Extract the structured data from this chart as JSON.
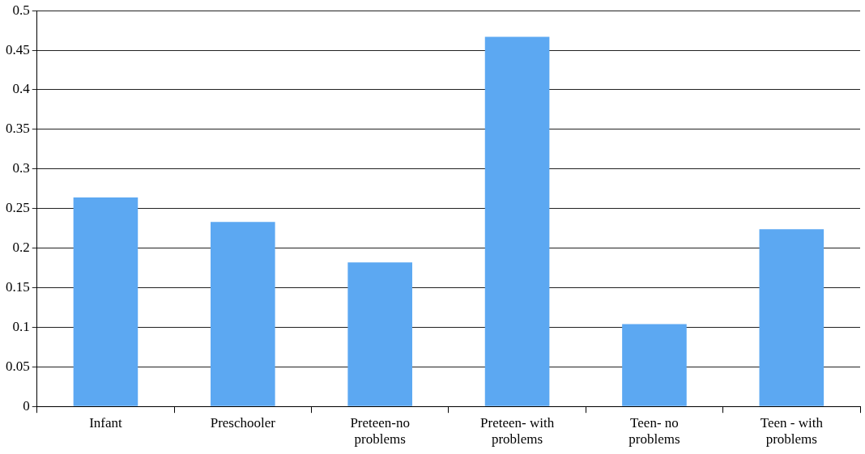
{
  "chart_data": {
    "type": "bar",
    "categories": [
      "Infant",
      "Preschooler",
      "Preteen-no problems",
      "Preteen- with problems",
      "Teen- no problems",
      "Teen - with problems"
    ],
    "values": [
      0.264,
      0.233,
      0.182,
      0.467,
      0.104,
      0.224
    ],
    "color": "#5ca8f2",
    "ylim": [
      0,
      0.5
    ],
    "yticks": [
      0,
      0.05,
      0.1,
      0.15,
      0.2,
      0.25,
      0.3,
      0.35,
      0.4,
      0.45,
      0.5
    ],
    "grid": "y",
    "legend": false
  }
}
